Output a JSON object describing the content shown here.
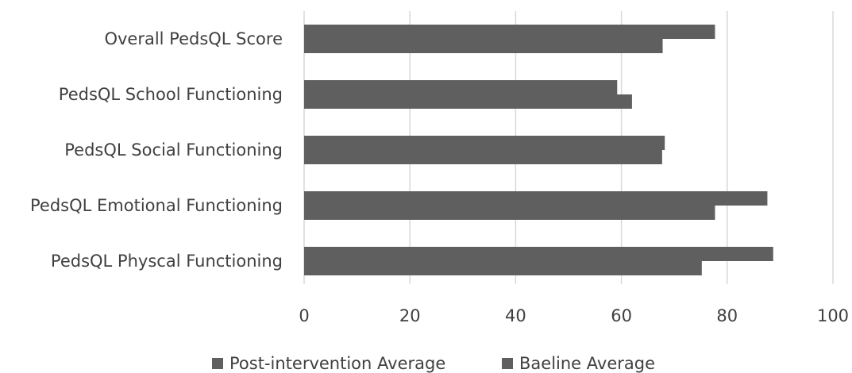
{
  "chart_data": {
    "type": "bar",
    "orientation": "horizontal",
    "title": "",
    "xlabel": "",
    "ylabel": "",
    "categories": [
      "Overall PedsQL Score",
      "PedsQL School Functioning",
      "PedsQL Social Functioning",
      "PedsQL Emotional Functioning",
      "PedsQL Physcal Functioning"
    ],
    "series": [
      {
        "name": "Post-intervention Average",
        "values": [
          77.7,
          59.2,
          68.2,
          87.6,
          88.7
        ],
        "color": "#5f5f5f"
      },
      {
        "name": "Baeline Average",
        "values": [
          67.8,
          62.0,
          67.7,
          77.7,
          75.2
        ],
        "color": "#5f5f5f"
      }
    ],
    "xlim": [
      0,
      100
    ],
    "xticks": [
      0,
      20,
      40,
      60,
      80,
      100
    ],
    "tick_labels": [
      "0",
      "20",
      "40",
      "60",
      "80",
      "100"
    ],
    "grid": true,
    "legend_position": "bottom"
  },
  "colors": {
    "bar": "#5f5f5f",
    "grid": "#d9d9d9",
    "text": "#404040"
  }
}
